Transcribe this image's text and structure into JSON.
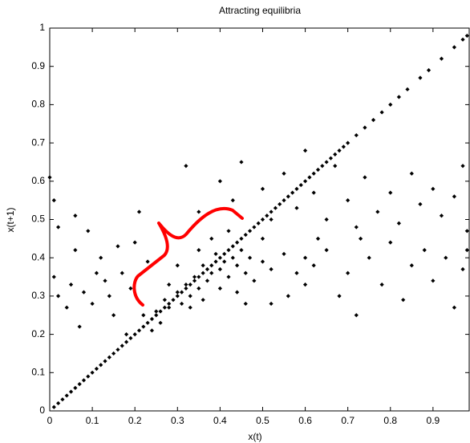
{
  "chart_data": {
    "type": "scatter",
    "title": "Attracting equilibria",
    "x_label": "x(t)",
    "y_label": "x(t+1)",
    "xlim": [
      0,
      0.985
    ],
    "ylim": [
      0,
      1
    ],
    "xticks": [
      0,
      0.1,
      0.2,
      0.3,
      0.4,
      0.5,
      0.6,
      0.7,
      0.8,
      0.9
    ],
    "yticks": [
      0,
      0.1,
      0.2,
      0.3,
      0.4,
      0.5,
      0.6,
      0.7,
      0.8,
      0.9,
      1
    ],
    "series": [
      {
        "color": "#000000",
        "x": [
          0.01,
          0.02,
          0.03,
          0.04,
          0.05,
          0.06,
          0.07,
          0.08,
          0.09,
          0.1,
          0.11,
          0.12,
          0.13,
          0.14,
          0.15,
          0.16,
          0.17,
          0.18,
          0.19,
          0.2,
          0.21,
          0.22,
          0.23,
          0.24,
          0.25,
          0.26,
          0.27,
          0.28,
          0.29,
          0.3,
          0.31,
          0.32,
          0.33,
          0.34,
          0.35,
          0.36,
          0.37,
          0.38,
          0.39,
          0.4,
          0.41,
          0.42,
          0.43,
          0.44,
          0.45,
          0.46,
          0.47,
          0.48,
          0.49,
          0.5,
          0.51,
          0.52,
          0.53,
          0.54,
          0.55,
          0.56,
          0.57,
          0.58,
          0.59,
          0.6,
          0.61,
          0.62,
          0.63,
          0.64,
          0.65,
          0.66,
          0.67,
          0.68,
          0.69,
          0.7,
          0.72,
          0.74,
          0.76,
          0.78,
          0.8,
          0.82,
          0.84,
          0.87,
          0.89,
          0.92,
          0.95,
          0.97,
          0.98
        ],
        "y": [
          0.01,
          0.02,
          0.03,
          0.04,
          0.05,
          0.06,
          0.07,
          0.08,
          0.09,
          0.1,
          0.11,
          0.12,
          0.13,
          0.14,
          0.15,
          0.16,
          0.17,
          0.18,
          0.19,
          0.2,
          0.21,
          0.22,
          0.23,
          0.24,
          0.25,
          0.26,
          0.27,
          0.28,
          0.29,
          0.3,
          0.31,
          0.32,
          0.33,
          0.34,
          0.35,
          0.36,
          0.37,
          0.38,
          0.39,
          0.4,
          0.41,
          0.42,
          0.43,
          0.44,
          0.45,
          0.46,
          0.47,
          0.48,
          0.49,
          0.5,
          0.51,
          0.52,
          0.53,
          0.54,
          0.55,
          0.56,
          0.57,
          0.58,
          0.59,
          0.6,
          0.61,
          0.62,
          0.63,
          0.64,
          0.65,
          0.66,
          0.67,
          0.68,
          0.69,
          0.7,
          0.72,
          0.74,
          0.76,
          0.78,
          0.8,
          0.82,
          0.84,
          0.87,
          0.89,
          0.92,
          0.95,
          0.97,
          0.98
        ]
      },
      {
        "color": "#000000",
        "x": [
          0.25,
          0.27,
          0.28,
          0.3,
          0.31,
          0.32,
          0.33,
          0.34,
          0.35,
          0.36,
          0.37,
          0.38,
          0.39,
          0.4,
          0.41,
          0.42,
          0.43,
          0.44,
          0.45,
          0.46,
          0.47,
          0.48,
          0.5,
          0.52,
          0.55,
          0.58,
          0.6,
          0.35,
          0.38,
          0.42,
          0.3,
          0.28,
          0.33,
          0.36,
          0.4,
          0.44,
          0.26,
          0.24,
          0.22,
          0.0,
          0.01,
          0.02,
          0.01,
          0.02,
          0.04,
          0.05,
          0.06,
          0.07,
          0.08,
          0.1,
          0.11,
          0.12,
          0.14,
          0.15,
          0.16,
          0.17,
          0.18,
          0.19,
          0.2,
          0.21,
          0.23,
          0.06,
          0.09,
          0.13,
          0.32,
          0.35,
          0.4,
          0.43,
          0.45,
          0.5,
          0.52,
          0.55,
          0.58,
          0.6,
          0.62,
          0.65,
          0.67,
          0.7,
          0.72,
          0.74,
          0.77,
          0.8,
          0.82,
          0.85,
          0.87,
          0.9,
          0.92,
          0.95,
          0.97,
          0.98,
          0.6,
          0.62,
          0.65,
          0.68,
          0.7,
          0.72,
          0.75,
          0.78,
          0.8,
          0.83,
          0.85,
          0.88,
          0.9,
          0.93,
          0.95,
          0.97,
          0.98,
          0.56,
          0.52,
          0.5,
          0.63,
          0.73,
          0.46
        ],
        "y": [
          0.26,
          0.29,
          0.27,
          0.31,
          0.28,
          0.33,
          0.3,
          0.35,
          0.32,
          0.38,
          0.34,
          0.36,
          0.41,
          0.37,
          0.39,
          0.35,
          0.4,
          0.38,
          0.42,
          0.36,
          0.4,
          0.34,
          0.39,
          0.37,
          0.41,
          0.36,
          0.4,
          0.42,
          0.45,
          0.47,
          0.38,
          0.33,
          0.27,
          0.29,
          0.32,
          0.31,
          0.23,
          0.21,
          0.25,
          0.61,
          0.55,
          0.48,
          0.35,
          0.3,
          0.27,
          0.33,
          0.42,
          0.22,
          0.31,
          0.28,
          0.36,
          0.4,
          0.3,
          0.25,
          0.43,
          0.36,
          0.2,
          0.32,
          0.44,
          0.52,
          0.39,
          0.51,
          0.47,
          0.34,
          0.64,
          0.52,
          0.6,
          0.55,
          0.65,
          0.58,
          0.5,
          0.62,
          0.53,
          0.68,
          0.57,
          0.5,
          0.64,
          0.55,
          0.48,
          0.61,
          0.52,
          0.57,
          0.49,
          0.62,
          0.54,
          0.58,
          0.51,
          0.56,
          0.64,
          0.47,
          0.33,
          0.38,
          0.42,
          0.3,
          0.36,
          0.25,
          0.4,
          0.33,
          0.44,
          0.29,
          0.38,
          0.42,
          0.34,
          0.4,
          0.27,
          0.37,
          0.42,
          0.3,
          0.28,
          0.45,
          0.45,
          0.45,
          0.28
        ]
      }
    ]
  }
}
